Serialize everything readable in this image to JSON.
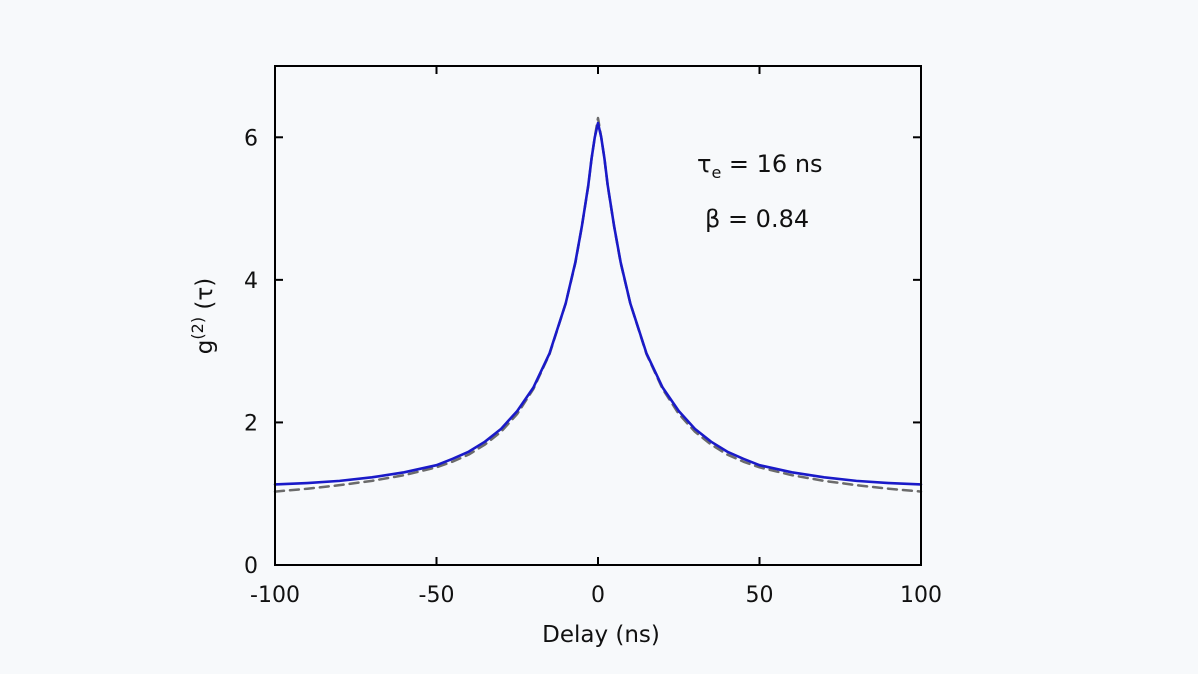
{
  "chart_data": {
    "type": "line",
    "title": "",
    "xlabel": "Delay (ns)",
    "ylabel": {
      "base": "g",
      "superscript": "(2)",
      "arg": " (τ)"
    },
    "xlim": [
      -100,
      100
    ],
    "ylim": [
      0,
      7
    ],
    "xticks": [
      -100,
      -50,
      0,
      50,
      100
    ],
    "yticks": [
      0,
      2,
      4,
      6
    ],
    "grid": false,
    "annotations": [
      {
        "name": "tau-e",
        "symbol": "τ",
        "subscript": "e",
        "text": " = 16 ns"
      },
      {
        "name": "beta",
        "text": "β = 0.84"
      }
    ],
    "series": [
      {
        "role": "measured",
        "color": "#1a1ac8",
        "style": "solid",
        "x": [
          -100,
          -90,
          -80,
          -70,
          -60,
          -50,
          -45,
          -40,
          -35,
          -30,
          -25,
          -20,
          -15,
          -10,
          -7,
          -5,
          -3,
          -2,
          -1,
          0,
          1,
          2,
          3,
          5,
          7,
          10,
          15,
          20,
          25,
          30,
          35,
          40,
          45,
          50,
          60,
          70,
          80,
          90,
          100
        ],
        "y": [
          1.13,
          1.15,
          1.18,
          1.23,
          1.3,
          1.4,
          1.49,
          1.59,
          1.73,
          1.91,
          2.16,
          2.49,
          2.97,
          3.67,
          4.25,
          4.75,
          5.33,
          5.7,
          6.0,
          6.2,
          6.0,
          5.7,
          5.33,
          4.75,
          4.25,
          3.67,
          2.97,
          2.49,
          2.16,
          1.91,
          1.73,
          1.59,
          1.49,
          1.4,
          1.3,
          1.23,
          1.18,
          1.15,
          1.13
        ]
      },
      {
        "role": "fit",
        "color": "#6b6b6b",
        "style": "dashed",
        "x": [
          -100,
          -90,
          -80,
          -70,
          -60,
          -50,
          -45,
          -40,
          -35,
          -30,
          -25,
          -20,
          -15,
          -10,
          -7,
          -5,
          -3,
          -2,
          -1,
          0,
          1,
          2,
          3,
          5,
          7,
          10,
          15,
          20,
          25,
          30,
          35,
          40,
          45,
          50,
          60,
          70,
          80,
          90,
          100
        ],
        "y": [
          1.03,
          1.07,
          1.12,
          1.18,
          1.26,
          1.37,
          1.45,
          1.55,
          1.69,
          1.87,
          2.12,
          2.47,
          2.96,
          3.67,
          4.24,
          4.75,
          5.32,
          5.7,
          6.0,
          6.27,
          6.0,
          5.7,
          5.32,
          4.75,
          4.24,
          3.67,
          2.96,
          2.47,
          2.12,
          1.87,
          1.69,
          1.55,
          1.45,
          1.37,
          1.26,
          1.18,
          1.12,
          1.07,
          1.03
        ]
      }
    ]
  }
}
